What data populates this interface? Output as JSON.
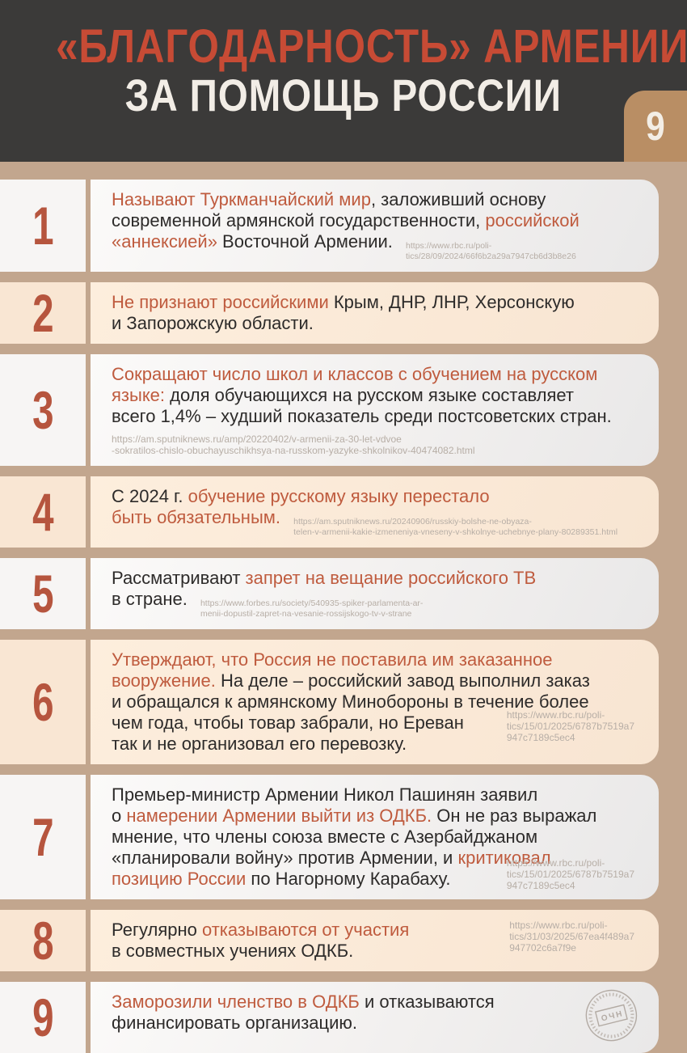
{
  "colors": {
    "page_bg": "#c2a68e",
    "header_bg": "#3b3a39",
    "title_red": "#c74b35",
    "title_white": "#f2ede6",
    "badge_bg": "#b98e64",
    "number_red": "#b6553e",
    "highlight_red": "#bf5b3e",
    "text_dark": "#2d2b2a",
    "card_light": "#f2f0ef",
    "card_cream": "#f8e5d2",
    "url_gray": "#b7aea6"
  },
  "header": {
    "title_line1": "«БЛАГОДАРНОСТЬ» АРМЕНИИ",
    "title_line2": "ЗА ПОМОЩЬ РОССИИ",
    "page_number": "9"
  },
  "items": [
    {
      "num": "1",
      "card": "light",
      "segments": [
        {
          "text": "Называют Туркманчайский мир",
          "highlight": true
        },
        {
          "text": ", заложивший основу\nсовременной армянской государственности, ",
          "highlight": false
        },
        {
          "text": "российской\n«аннексией»",
          "highlight": true
        },
        {
          "text": " Восточной Армении. ",
          "highlight": false
        }
      ],
      "url": {
        "text": "https://www.rbc.ru/poli-\ntics/28/09/2024/66f6b2a29a7947cb6d3b8e26",
        "placement": "inline"
      }
    },
    {
      "num": "2",
      "card": "cream",
      "segments": [
        {
          "text": "Не признают российскими",
          "highlight": true
        },
        {
          "text": " Крым, ДНР, ЛНР, Херсонскую\nи Запорожскую области.",
          "highlight": false
        }
      ]
    },
    {
      "num": "3",
      "card": "light",
      "segments": [
        {
          "text": "Сокращают число школ и классов с обучением на русском\nязыке:",
          "highlight": true
        },
        {
          "text": " доля обучающихся на русском языке составляет\nвсего 1,4% – худший показатель среди постсоветских стран.",
          "highlight": false
        }
      ],
      "url": {
        "text": "https://am.sputniknews.ru/amp/20220402/v-armenii-za-30-let-vdvoe\n-sokratilos-chislo-obuchayuschikhsya-na-russkom-yazyke-shkolnikov-40474082.html",
        "placement": "below"
      }
    },
    {
      "num": "4",
      "card": "cream",
      "segments": [
        {
          "text": "С 2024 г. ",
          "highlight": false
        },
        {
          "text": "обучение русскому языку перестало\nбыть обязательным. ",
          "highlight": true
        }
      ],
      "url": {
        "text": "https://am.sputniknews.ru/20240906/russkiy-bolshe-ne-obyaza-\ntelen-v-armenii-kakie-izmeneniya-vneseny-v-shkolnye-uchebnye-plany-80289351.html",
        "placement": "inline"
      }
    },
    {
      "num": "5",
      "card": "light",
      "segments": [
        {
          "text": "Рассматривают ",
          "highlight": false
        },
        {
          "text": "запрет на вещание российского ТВ",
          "highlight": true
        },
        {
          "text": "\nв стране. ",
          "highlight": false
        }
      ],
      "url": {
        "text": "https://www.forbes.ru/society/540935-spiker-parlamenta-ar-\nmenii-dopustil-zapret-na-vesanie-rossijskogo-tv-v-strane",
        "placement": "inline"
      }
    },
    {
      "num": "6",
      "card": "cream",
      "segments": [
        {
          "text": "Утверждают, что Россия не поставила им заказанное\nвооружение.",
          "highlight": true
        },
        {
          "text": " На деле – российский завод выполнил заказ\nи обращался к армянскому Минобороны в течение более\nчем года, чтобы товар забрали, но Ереван\nтак и не организовал его перевозку.",
          "highlight": false
        }
      ],
      "url": {
        "text": "https://www.rbc.ru/poli-\ntics/15/01/2025/6787b7519a7\n947c7189c5ec4",
        "placement": "right-bottom"
      }
    },
    {
      "num": "7",
      "card": "light",
      "segments": [
        {
          "text": "Премьер-министр Армении Никол Пашинян заявил\nо ",
          "highlight": false
        },
        {
          "text": "намерении Армении выйти из ОДКБ.",
          "highlight": true
        },
        {
          "text": " Он не раз выражал\nмнение, что члены союза вместе с Азербайджаном\n«планировали войну» против Армении, и ",
          "highlight": false
        },
        {
          "text": "критиковал\nпозицию России",
          "highlight": true
        },
        {
          "text": " по Нагорному Карабаху.",
          "highlight": false
        }
      ],
      "url": {
        "text": "https://www.rbc.ru/poli-\ntics/15/01/2025/6787b7519a7\n947c7189c5ec4",
        "placement": "right-low"
      }
    },
    {
      "num": "8",
      "card": "cream",
      "segments": [
        {
          "text": "Регулярно ",
          "highlight": false
        },
        {
          "text": "отказываются от участия",
          "highlight": true
        },
        {
          "text": "\nв совместных учениях ОДКБ.",
          "highlight": false
        }
      ],
      "url": {
        "text": "https://www.rbc.ru/poli-\ntics/31/03/2025/67ea4f489a7\n947702c6a7f9e",
        "placement": "right-top"
      }
    },
    {
      "num": "9",
      "card": "light",
      "segments": [
        {
          "text": "Заморозили членство в ОДКБ",
          "highlight": true
        },
        {
          "text": " и отказываются\nфинансировать организацию.",
          "highlight": false
        }
      ],
      "stamp": {
        "label": "ОЧН"
      }
    }
  ]
}
